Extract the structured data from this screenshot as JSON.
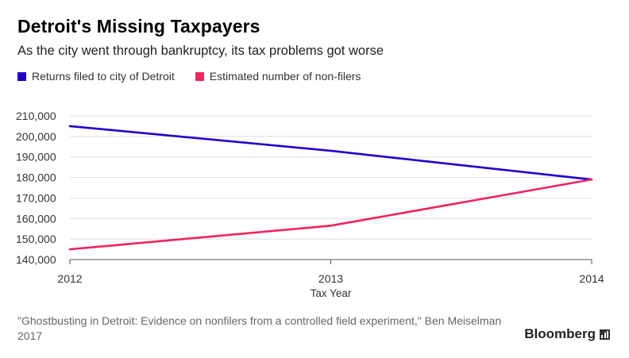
{
  "header": {
    "title": "Detroit's Missing Taxpayers",
    "subtitle": "As the city went through bankruptcy, its tax problems got worse"
  },
  "legend": [
    {
      "label": "Returns filed to city of Detroit",
      "color": "#2200cc"
    },
    {
      "label": "Estimated number of non-filers",
      "color": "#f0245f"
    }
  ],
  "footer": {
    "source": "\"Ghostbusting in Detroit: Evidence on nonfilers from a controlled field experiment,\" Ben Meiselman 2017",
    "brand": "Bloomberg",
    "brand_icon": "bloomberg-logo-icon"
  },
  "chart_data": {
    "type": "line",
    "title": "Detroit's Missing Taxpayers",
    "xlabel": "Tax Year",
    "ylabel": "",
    "x": [
      2012,
      2013,
      2014
    ],
    "x_tick_labels": [
      "2012",
      "2013",
      "2014"
    ],
    "y_tick_values": [
      140000,
      150000,
      160000,
      170000,
      180000,
      190000,
      200000,
      210000
    ],
    "y_tick_labels": [
      "140,000",
      "150,000",
      "160,000",
      "170,000",
      "180,000",
      "190,000",
      "200,000",
      "210,000"
    ],
    "ylim": [
      140000,
      210000
    ],
    "grid": true,
    "series": [
      {
        "name": "Returns filed to city of Detroit",
        "color": "#2200cc",
        "values": [
          205000,
          193000,
          179000
        ]
      },
      {
        "name": "Estimated number of non-filers",
        "color": "#f0245f",
        "values": [
          145000,
          156500,
          179000
        ]
      }
    ]
  }
}
